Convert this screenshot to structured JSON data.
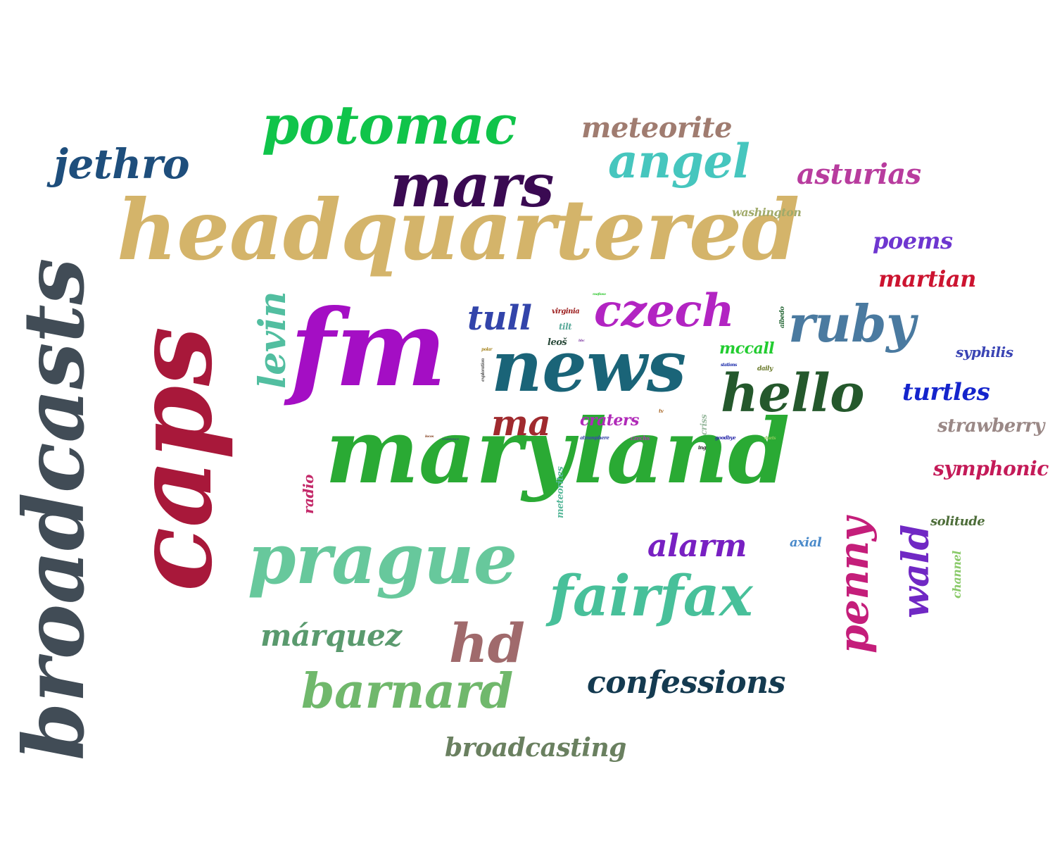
{
  "words": {
    "headquartered": {
      "text": "headquartered",
      "color": "#D4B46A"
    },
    "maryland": {
      "text": "maryland",
      "color": "#2AAA34"
    },
    "caps": {
      "text": "caps",
      "color": "#A8183A"
    },
    "broadcasts": {
      "text": "broadcasts",
      "color": "#414C56"
    },
    "fm": {
      "text": "fm",
      "color": "#A40EC4"
    },
    "news": {
      "text": "news",
      "color": "#1A6478"
    },
    "prague": {
      "text": "prague",
      "color": "#67C89C"
    },
    "mars": {
      "text": "mars",
      "color": "#3A0A52"
    },
    "potomac": {
      "text": "potomac",
      "color": "#10C44A"
    },
    "angel": {
      "text": "angel",
      "color": "#46C6BE"
    },
    "fairfax": {
      "text": "fairfax",
      "color": "#48C09A"
    },
    "barnard": {
      "text": "barnard",
      "color": "#70B86C"
    },
    "hello": {
      "text": "hello",
      "color": "#24582C"
    },
    "ruby": {
      "text": "ruby",
      "color": "#4A7AA0"
    },
    "czech": {
      "text": "czech",
      "color": "#B224C2"
    },
    "jethro": {
      "text": "jethro",
      "color": "#1E4E7C"
    },
    "hd": {
      "text": "hd",
      "color": "#A06A6C"
    },
    "confessions": {
      "text": "confessions",
      "color": "#143A50"
    },
    "asturias": {
      "text": "asturias",
      "color": "#B83C9E"
    },
    "meteorite": {
      "text": "meteorite",
      "color": "#A07C70"
    },
    "tull": {
      "text": "tull",
      "color": "#3244AA"
    },
    "penny": {
      "text": "penny",
      "color": "#C41E7A"
    },
    "wald": {
      "text": "wald",
      "color": "#7028C4"
    },
    "levin": {
      "text": "levin",
      "color": "#52BEA0"
    },
    "alarm": {
      "text": "alarm",
      "color": "#7820C2"
    },
    "ma": {
      "text": "ma",
      "color": "#A02A2E"
    },
    "marquez": {
      "text": "márquez",
      "color": "#5A9A6E"
    },
    "broadcasting": {
      "text": "broadcasting",
      "color": "#6A8060"
    },
    "poems": {
      "text": "poems",
      "color": "#6E36D0"
    },
    "martian": {
      "text": "martian",
      "color": "#CC1430"
    },
    "turtles": {
      "text": "turtles",
      "color": "#1424CC"
    },
    "strawberry": {
      "text": "strawberry",
      "color": "#9A8886"
    },
    "symphonic": {
      "text": "symphonic",
      "color": "#C41A58"
    },
    "mccall": {
      "text": "mccall",
      "color": "#22CC30"
    },
    "craters": {
      "text": "craters",
      "color": "#B02AB8"
    },
    "syphilis": {
      "text": "syphilis",
      "color": "#3A44B4"
    },
    "washington": {
      "text": "washington",
      "color": "#A0AA6A"
    },
    "solitude": {
      "text": "solitude",
      "color": "#4E6E3A"
    },
    "axial": {
      "text": "axial",
      "color": "#4A8ACA"
    },
    "radio": {
      "text": "radio",
      "color": "#C42A6A"
    },
    "channel": {
      "text": "channel",
      "color": "#8ACA6A"
    },
    "meteorites": {
      "text": "meteorites",
      "color": "#58B89A"
    },
    "virginia": {
      "text": "virginia",
      "color": "#9A1A1A"
    },
    "tilt": {
      "text": "tilt",
      "color": "#5AAA9A"
    },
    "leos": {
      "text": "leoš",
      "color": "#2A4A3A"
    },
    "albedo": {
      "text": "albedo",
      "color": "#2A6A3A"
    },
    "criss": {
      "text": "criss",
      "color": "#9ABAA0"
    },
    "daily": {
      "text": "daily",
      "color": "#6A7A2A"
    },
    "stations": {
      "text": "stations",
      "color": "#1A2AAA"
    },
    "atmosphere": {
      "text": "atmosphere",
      "color": "#3A4AAA"
    },
    "czechs": {
      "text": "czechs",
      "color": "#AA3AAA"
    },
    "goodbye": {
      "text": "goodbye",
      "color": "#2A2AAA"
    },
    "exploration": {
      "text": "exploration",
      "color": "#5A5A5A"
    },
    "polar": {
      "text": "polar",
      "color": "#AA8A2A"
    },
    "tv": {
      "text": "tv",
      "color": "#AA6A2A"
    },
    "ing": {
      "text": "ing",
      "color": "#2A2A2A"
    },
    "duets": {
      "text": "duets",
      "color": "#8ACA5A"
    },
    "locos": {
      "text": "locos",
      "color": "#8A4A2A"
    },
    "resistance": {
      "text": "resistance",
      "color": "#3A5A6A"
    },
    "mafioso": {
      "text": "mafioso",
      "color": "#3ACA3A"
    },
    "bbc": {
      "text": "bbc",
      "color": "#8A4AAA"
    }
  }
}
